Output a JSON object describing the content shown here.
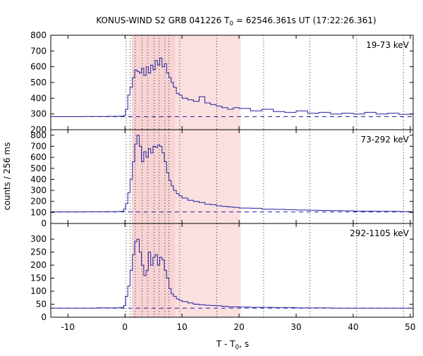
{
  "title": "KONUS-WIND S2 GRB 041226 T",
  "title_sub": "0",
  "title_rest": " = 62546.361s UT (17:22:26.361)",
  "ylabel": "counts / 256 ms",
  "xlabel_main": "T - T",
  "xlabel_sub": "0",
  "xlabel_rest": ", s",
  "colors": {
    "line": "#2020a0",
    "band": "#fbe0e0",
    "band_inner": "#f5c8c8",
    "dotted": "#333333"
  },
  "chart_data": [
    {
      "type": "line",
      "panel": "top",
      "label": "19-73 keV",
      "ylim": [
        200,
        800
      ],
      "yticks": [
        200,
        300,
        400,
        500,
        600,
        700,
        800
      ],
      "background": 283,
      "x": [
        -13,
        -11,
        -9,
        -7,
        -5,
        -3,
        -1,
        -0.2,
        0.1,
        0.5,
        0.9,
        1.3,
        1.7,
        2.1,
        2.5,
        2.9,
        3.3,
        3.7,
        4.1,
        4.5,
        4.9,
        5.3,
        5.7,
        6.1,
        6.5,
        6.9,
        7.3,
        7.7,
        8.1,
        8.5,
        9.0,
        9.5,
        10,
        11,
        12,
        13,
        14,
        15,
        16,
        17,
        18,
        19,
        20,
        22,
        24,
        26,
        28,
        30,
        32,
        34,
        36,
        38,
        40,
        42,
        44,
        46,
        48,
        50
      ],
      "y": [
        283,
        283,
        283,
        284,
        284,
        285,
        286,
        290,
        330,
        420,
        470,
        530,
        580,
        570,
        560,
        590,
        545,
        600,
        560,
        610,
        580,
        640,
        610,
        655,
        600,
        620,
        560,
        530,
        500,
        470,
        430,
        420,
        400,
        390,
        380,
        410,
        370,
        360,
        350,
        340,
        330,
        340,
        335,
        320,
        330,
        315,
        310,
        320,
        305,
        310,
        300,
        305,
        300,
        310,
        300,
        305,
        298,
        300
      ]
    },
    {
      "type": "line",
      "panel": "middle",
      "label": "73-292 keV",
      "ylim": [
        0,
        850
      ],
      "yticks": [
        0,
        100,
        200,
        300,
        400,
        500,
        600,
        700,
        800
      ],
      "background": 105,
      "x": [
        -13,
        -11,
        -9,
        -7,
        -5,
        -3,
        -1,
        -0.2,
        0.1,
        0.5,
        0.9,
        1.3,
        1.7,
        2.1,
        2.5,
        2.9,
        3.3,
        3.7,
        4.1,
        4.5,
        4.9,
        5.3,
        5.7,
        6.1,
        6.5,
        6.9,
        7.3,
        7.7,
        8.1,
        8.5,
        9.0,
        9.5,
        10,
        11,
        12,
        13,
        14,
        15,
        16,
        17,
        18,
        19,
        20,
        22,
        24,
        26,
        28,
        30,
        32,
        34,
        36,
        38,
        40,
        42,
        44,
        46,
        48,
        50
      ],
      "y": [
        105,
        105,
        105,
        106,
        106,
        107,
        110,
        130,
        180,
        280,
        400,
        560,
        720,
        800,
        700,
        560,
        650,
        600,
        680,
        640,
        700,
        690,
        710,
        700,
        640,
        560,
        460,
        390,
        340,
        300,
        270,
        250,
        230,
        210,
        200,
        190,
        175,
        170,
        160,
        155,
        150,
        145,
        140,
        138,
        130,
        128,
        125,
        122,
        120,
        118,
        116,
        115,
        112,
        112,
        110,
        110,
        108,
        107
      ]
    },
    {
      "type": "line",
      "panel": "bottom",
      "label": "292-1105 keV",
      "ylim": [
        0,
        360
      ],
      "yticks": [
        0,
        50,
        100,
        150,
        200,
        250,
        300
      ],
      "background": 35,
      "x": [
        -13,
        -11,
        -9,
        -7,
        -5,
        -3,
        -1,
        -0.2,
        0.1,
        0.5,
        0.9,
        1.3,
        1.7,
        2.1,
        2.5,
        2.9,
        3.3,
        3.7,
        4.1,
        4.5,
        4.9,
        5.3,
        5.7,
        6.1,
        6.5,
        6.9,
        7.3,
        7.7,
        8.1,
        8.5,
        9.0,
        9.5,
        10,
        11,
        12,
        13,
        14,
        15,
        16,
        17,
        18,
        19,
        20,
        22,
        24,
        26,
        28,
        30,
        32,
        34,
        36,
        38,
        40,
        42,
        44,
        46,
        48,
        50
      ],
      "y": [
        35,
        35,
        35,
        35,
        36,
        36,
        37,
        45,
        80,
        120,
        180,
        240,
        290,
        300,
        250,
        200,
        160,
        180,
        250,
        200,
        230,
        240,
        200,
        230,
        220,
        180,
        150,
        110,
        90,
        80,
        70,
        65,
        60,
        55,
        50,
        48,
        46,
        45,
        44,
        42,
        40,
        40,
        39,
        38,
        38,
        37,
        37,
        36,
        36,
        36,
        35,
        35,
        35,
        35,
        35,
        35,
        35,
        35
      ]
    }
  ],
  "xlim": [
    -13,
    50.5
  ],
  "xticks": [
    -10,
    0,
    10,
    20,
    30,
    40,
    50
  ],
  "xtick_labels": [
    "-10",
    "0",
    "10",
    "20",
    "30",
    "40",
    "50"
  ],
  "band": [
    1.2,
    20.3
  ],
  "band_inner": [
    1.2,
    8.8
  ],
  "dotted_lines": [
    0.2,
    0.9,
    1.8,
    3.0,
    4.0,
    5.1,
    6.0,
    7.0,
    7.7,
    9.6,
    16.1,
    24.3,
    32.4,
    40.6,
    48.8
  ]
}
